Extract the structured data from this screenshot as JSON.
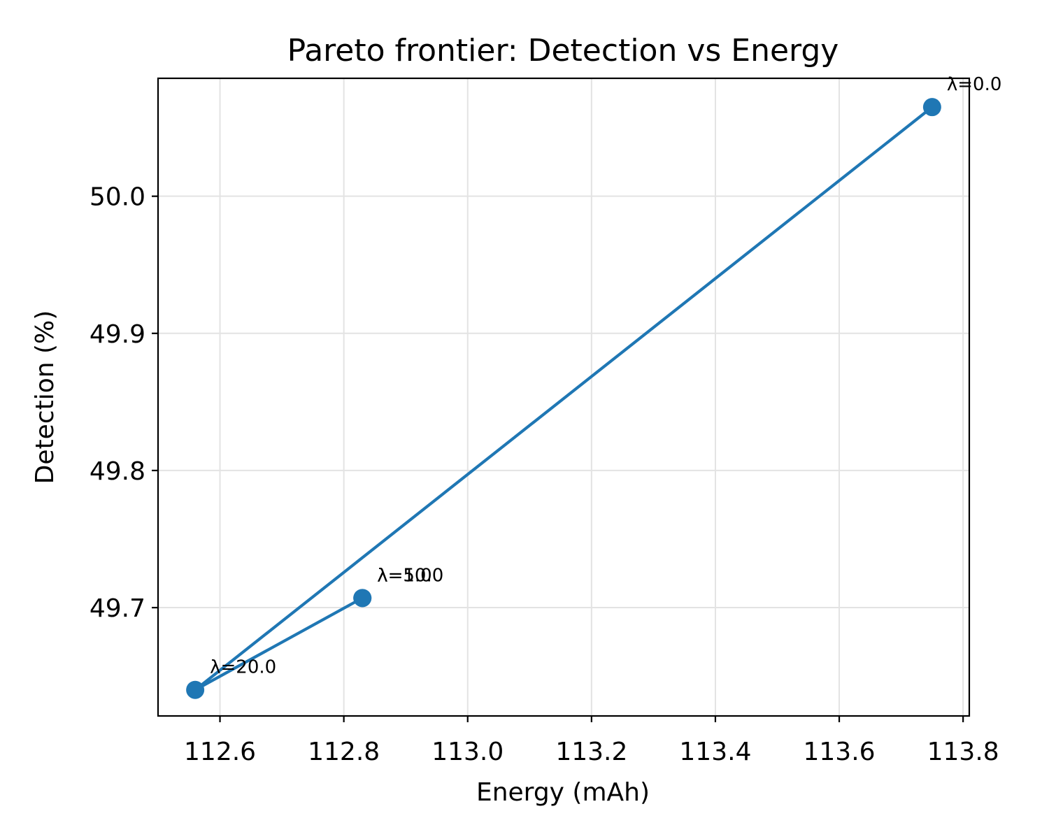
{
  "chart_data": {
    "type": "line",
    "title": "Pareto frontier: Detection vs Energy",
    "xlabel": "Energy (mAh)",
    "ylabel": "Detection (%)",
    "xlim": [
      112.5,
      113.81
    ],
    "ylim": [
      49.621,
      50.086
    ],
    "xticks": [
      112.6,
      112.8,
      113.0,
      113.2,
      113.4,
      113.6,
      113.8
    ],
    "xtick_labels": [
      "112.6",
      "112.8",
      "113.0",
      "113.2",
      "113.4",
      "113.6",
      "113.8"
    ],
    "yticks": [
      49.7,
      49.8,
      49.9,
      50.0
    ],
    "ytick_labels": [
      "49.7",
      "49.8",
      "49.9",
      "50.0"
    ],
    "grid": true,
    "color": "#1f77b4",
    "points": [
      {
        "label": "λ=0.0",
        "x": 113.75,
        "y": 50.065
      },
      {
        "label": "λ=20.0",
        "x": 112.56,
        "y": 49.64
      },
      {
        "label": "λ=5.0",
        "x": 112.83,
        "y": 49.707
      },
      {
        "label": "λ=10.0",
        "x": 112.83,
        "y": 49.707
      }
    ]
  }
}
